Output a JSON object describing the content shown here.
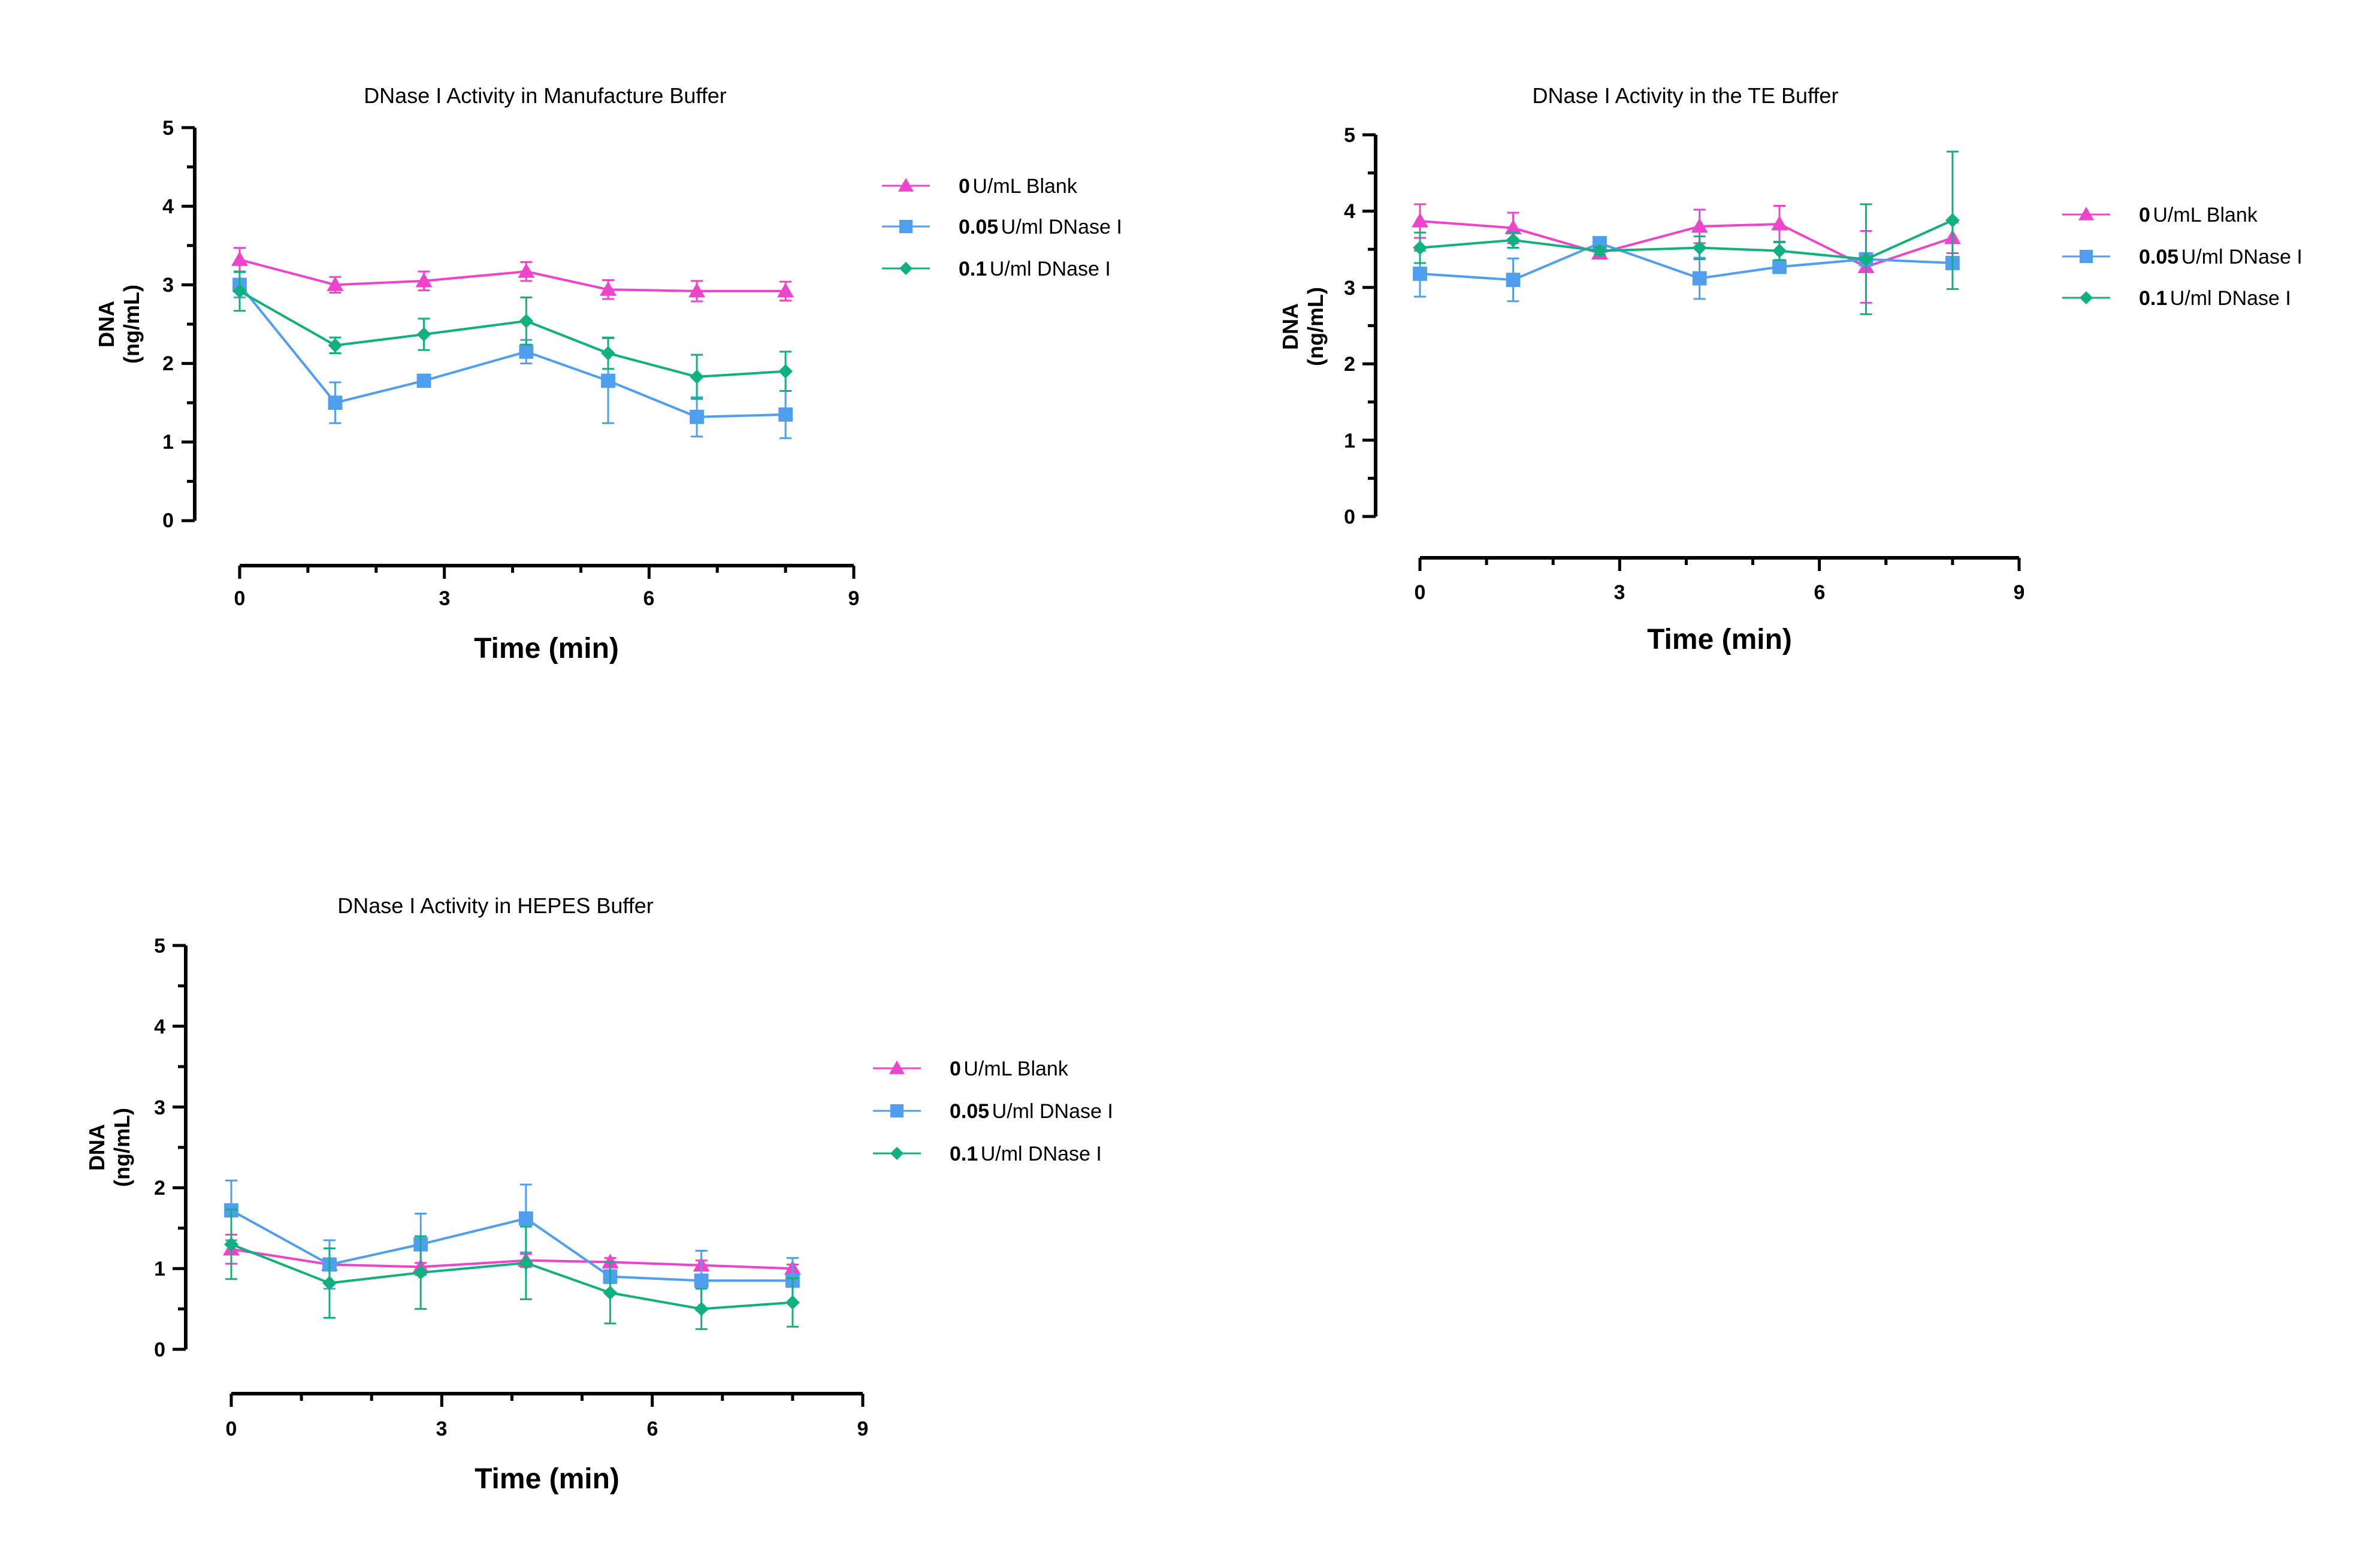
{
  "colors": {
    "blank": "#ee44cc",
    "dnase005": "#4f9fee",
    "dnase01": "#11b07f"
  },
  "chart_data": [
    {
      "type": "line",
      "title": "DNase I Activity in Manufacture Buffer",
      "xlabel": "Time (min)",
      "ylabel": "DNA",
      "ylabel_unit": "(ng/mL)",
      "xlim": [
        0,
        9
      ],
      "ylim": [
        0,
        5
      ],
      "xticks": [
        "0",
        "3",
        "6",
        "9"
      ],
      "yticks": [
        "0",
        "1",
        "2",
        "3",
        "4",
        "5"
      ],
      "grid": false,
      "legend_position": "right",
      "x": [
        0,
        1.4,
        2.7,
        4.2,
        5.4,
        6.7,
        8.0
      ],
      "series": [
        {
          "name": "0 U/mL Blank",
          "name_bold": "0",
          "name_rest": "U/mL Blank",
          "color_key": "blank",
          "marker": "triangle",
          "values": [
            3.32,
            3.0,
            3.05,
            3.17,
            2.94,
            2.92,
            2.92
          ],
          "errors": [
            0.15,
            0.1,
            0.12,
            0.12,
            0.12,
            0.13,
            0.12
          ]
        },
        {
          "name": "0.05 U/ml DNase I",
          "name_bold": "0.05",
          "name_rest": "U/ml DNase I",
          "color_key": "dnase005",
          "marker": "square",
          "values": [
            3.0,
            1.5,
            1.78,
            2.15,
            1.78,
            1.32,
            1.35
          ],
          "errors": [
            0.16,
            0.26,
            0.05,
            0.15,
            0.54,
            0.25,
            0.3
          ]
        },
        {
          "name": "0.1 U/ml DNase I",
          "name_bold": "0.1",
          "name_rest": "U/ml DNase I",
          "color_key": "dnase01",
          "marker": "diamond",
          "values": [
            2.92,
            2.23,
            2.37,
            2.54,
            2.13,
            1.83,
            1.9
          ],
          "errors": [
            0.25,
            0.1,
            0.2,
            0.3,
            0.2,
            0.28,
            0.25
          ]
        }
      ]
    },
    {
      "type": "line",
      "title": "DNase I  Activity in the TE Buffer",
      "xlabel": "Time (min)",
      "ylabel": "DNA",
      "ylabel_unit": "(ng/mL)",
      "xlim": [
        0,
        9
      ],
      "ylim": [
        0,
        5
      ],
      "xticks": [
        "0",
        "3",
        "6",
        "9"
      ],
      "yticks": [
        "0",
        "1",
        "2",
        "3",
        "4",
        "5"
      ],
      "grid": false,
      "legend_position": "right",
      "x": [
        0,
        1.4,
        2.7,
        4.2,
        5.4,
        6.7,
        8.0
      ],
      "series": [
        {
          "name": "0 U/mL Blank",
          "name_bold": "0",
          "name_rest": "U/mL Blank",
          "color_key": "blank",
          "marker": "triangle",
          "values": [
            3.87,
            3.78,
            3.45,
            3.8,
            3.83,
            3.27,
            3.65
          ],
          "errors": [
            0.22,
            0.2,
            0.05,
            0.22,
            0.24,
            0.47,
            0.2
          ]
        },
        {
          "name": "0.05 U/ml DNase I",
          "name_bold": "0.05",
          "name_rest": "U/ml DNase I",
          "color_key": "dnase005",
          "marker": "square",
          "values": [
            3.18,
            3.1,
            3.58,
            3.12,
            3.27,
            3.37,
            3.32
          ],
          "errors": [
            0.3,
            0.28,
            0.03,
            0.27,
            0.08,
            0.05,
            0.05
          ]
        },
        {
          "name": "0.1 U/ml DNase I",
          "name_bold": "0.1",
          "name_rest": "U/ml DNase I",
          "color_key": "dnase01",
          "marker": "diamond",
          "values": [
            3.52,
            3.62,
            3.48,
            3.52,
            3.48,
            3.37,
            3.88
          ],
          "errors": [
            0.2,
            0.1,
            0.05,
            0.15,
            0.12,
            0.72,
            0.9
          ]
        }
      ]
    },
    {
      "type": "line",
      "title": "DNase I Activity in HEPES Buffer",
      "xlabel": "Time (min)",
      "ylabel": "DNA",
      "ylabel_unit": "(ng/mL)",
      "xlim": [
        0,
        9
      ],
      "ylim": [
        0,
        5
      ],
      "xticks": [
        "0",
        "3",
        "6",
        "9"
      ],
      "yticks": [
        "0",
        "1",
        "2",
        "3",
        "4",
        "5"
      ],
      "grid": false,
      "legend_position": "right",
      "x": [
        0,
        1.4,
        2.7,
        4.2,
        5.4,
        6.7,
        8.0
      ],
      "series": [
        {
          "name": "0 U/mL Blank",
          "name_bold": "0",
          "name_rest": "U/mL Blank",
          "color_key": "blank",
          "marker": "triangle",
          "values": [
            1.24,
            1.05,
            1.02,
            1.1,
            1.08,
            1.04,
            1.0
          ],
          "errors": [
            0.18,
            0.05,
            0.05,
            0.08,
            0.05,
            0.06,
            0.05
          ]
        },
        {
          "name": "0.05 U/ml DNase I",
          "name_bold": "0.05",
          "name_rest": "U/ml DNase I",
          "color_key": "dnase005",
          "marker": "square",
          "values": [
            1.72,
            1.05,
            1.3,
            1.62,
            0.9,
            0.85,
            0.85
          ],
          "errors": [
            0.37,
            0.3,
            0.38,
            0.42,
            0.08,
            0.37,
            0.28
          ]
        },
        {
          "name": "0.1 U/ml DNase I",
          "name_bold": "0.1",
          "name_rest": "U/ml DNase I",
          "color_key": "dnase01",
          "marker": "diamond",
          "values": [
            1.3,
            0.82,
            0.95,
            1.07,
            0.7,
            0.5,
            0.58
          ],
          "errors": [
            0.43,
            0.43,
            0.45,
            0.45,
            0.38,
            0.25,
            0.3
          ]
        }
      ]
    }
  ]
}
